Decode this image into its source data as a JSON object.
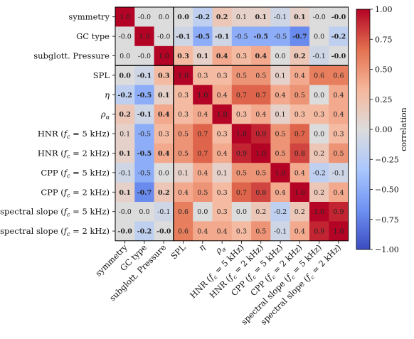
{
  "chart_data": {
    "type": "heatmap",
    "title": "",
    "rows": [
      "symmetry",
      "GC type",
      "subglott. Pressure",
      "SPL",
      "η",
      "ρα",
      "HNR (fc = 5 kHz)",
      "HNR (fc = 2 kHz)",
      "CPP (fc = 5 kHz)",
      "CPP (fc = 2 kHz)",
      "spectral slope (fc = 5 kHz)",
      "spectral slope (fc = 2 kHz)"
    ],
    "columns": [
      "symmetry",
      "GC type",
      "subglott. Pressure",
      "SPL",
      "η",
      "ρα",
      "HNR (fc = 5 kHz)",
      "HNR (fc = 2 kHz)",
      "CPP (fc = 5 kHz)",
      "CPP (fc = 2 kHz)",
      "spectral slope (fc = 5 kHz)",
      "spectral slope (fc = 2 kHz)"
    ],
    "cells": [
      [
        "1.0",
        "-0.0",
        "0.0",
        "0.0",
        "-0.2",
        "0.2",
        "0.1",
        "0.1",
        "-0.1",
        "0.1",
        "-0.0",
        "-0.0"
      ],
      [
        "-0.0",
        "1.0",
        "-0.0",
        "-0.1",
        "-0.5",
        "-0.1",
        "-0.5",
        "-0.5",
        "-0.5",
        "-0.7",
        "0.0",
        "-0.2"
      ],
      [
        "0.0",
        "-0.0",
        "1.0",
        "0.3",
        "0.1",
        "0.4",
        "0.3",
        "0.4",
        "0.0",
        "0.2",
        "-0.1",
        "-0.0"
      ],
      [
        "0.0",
        "-0.1",
        "0.3",
        "1.0",
        "0.3",
        "0.3",
        "0.5",
        "0.5",
        "0.1",
        "0.4",
        "0.6",
        "0.6"
      ],
      [
        "-0.2",
        "-0.5",
        "0.1",
        "0.3",
        "1.0",
        "0.4",
        "0.7",
        "0.7",
        "0.4",
        "0.5",
        "0.0",
        "0.4"
      ],
      [
        "0.2",
        "-0.1",
        "0.4",
        "0.3",
        "0.4",
        "1.0",
        "0.3",
        "0.4",
        "0.1",
        "0.3",
        "0.3",
        "0.4"
      ],
      [
        "0.1",
        "-0.5",
        "0.3",
        "0.5",
        "0.7",
        "0.3",
        "1.0",
        "0.9",
        "0.5",
        "0.7",
        "0.0",
        "0.3"
      ],
      [
        "0.1",
        "-0.5",
        "0.4",
        "0.5",
        "0.7",
        "0.4",
        "0.9",
        "1.0",
        "0.5",
        "0.8",
        "0.2",
        "0.5"
      ],
      [
        "-0.1",
        "-0.5",
        "0.0",
        "0.1",
        "0.4",
        "0.1",
        "0.5",
        "0.5",
        "1.0",
        "0.4",
        "-0.2",
        "-0.1"
      ],
      [
        "0.1",
        "-0.7",
        "0.2",
        "0.4",
        "0.5",
        "0.3",
        "0.7",
        "0.8",
        "0.4",
        "1.0",
        "0.2",
        "0.4"
      ],
      [
        "-0.0",
        "0.0",
        "-0.1",
        "0.6",
        "0.0",
        "0.3",
        "0.0",
        "0.2",
        "-0.2",
        "0.2",
        "1.0",
        "0.9"
      ],
      [
        "-0.0",
        "-0.2",
        "-0.0",
        "0.6",
        "0.4",
        "0.4",
        "0.3",
        "0.5",
        "-0.1",
        "0.4",
        "0.9",
        "1.0"
      ]
    ],
    "bold_cells": [
      [
        0,
        3
      ],
      [
        0,
        4
      ],
      [
        0,
        5
      ],
      [
        0,
        7
      ],
      [
        0,
        9
      ],
      [
        0,
        11
      ],
      [
        1,
        3
      ],
      [
        1,
        4
      ],
      [
        1,
        5
      ],
      [
        1,
        7
      ],
      [
        1,
        9
      ],
      [
        1,
        11
      ],
      [
        2,
        3
      ],
      [
        2,
        4
      ],
      [
        2,
        5
      ],
      [
        2,
        7
      ],
      [
        2,
        9
      ],
      [
        2,
        11
      ],
      [
        3,
        0
      ],
      [
        3,
        1
      ],
      [
        3,
        2
      ],
      [
        4,
        0
      ],
      [
        4,
        1
      ],
      [
        4,
        2
      ],
      [
        5,
        0
      ],
      [
        5,
        1
      ],
      [
        5,
        2
      ],
      [
        7,
        0
      ],
      [
        7,
        1
      ],
      [
        7,
        2
      ],
      [
        9,
        0
      ],
      [
        9,
        1
      ],
      [
        9,
        2
      ],
      [
        11,
        0
      ],
      [
        11,
        1
      ],
      [
        11,
        2
      ]
    ],
    "colorbar": {
      "label": "correlation",
      "range": [
        -1.0,
        1.0
      ],
      "ticks": [
        "1.00",
        "0.75",
        "0.50",
        "0.25",
        "0.00",
        "−0.25",
        "−0.50",
        "−0.75",
        "−1.00"
      ],
      "colors": [
        "#3b4cc0",
        "#6f92f3",
        "#aac7fd",
        "#dddcdc",
        "#f6b79c",
        "#e3704f",
        "#b40426"
      ]
    }
  }
}
